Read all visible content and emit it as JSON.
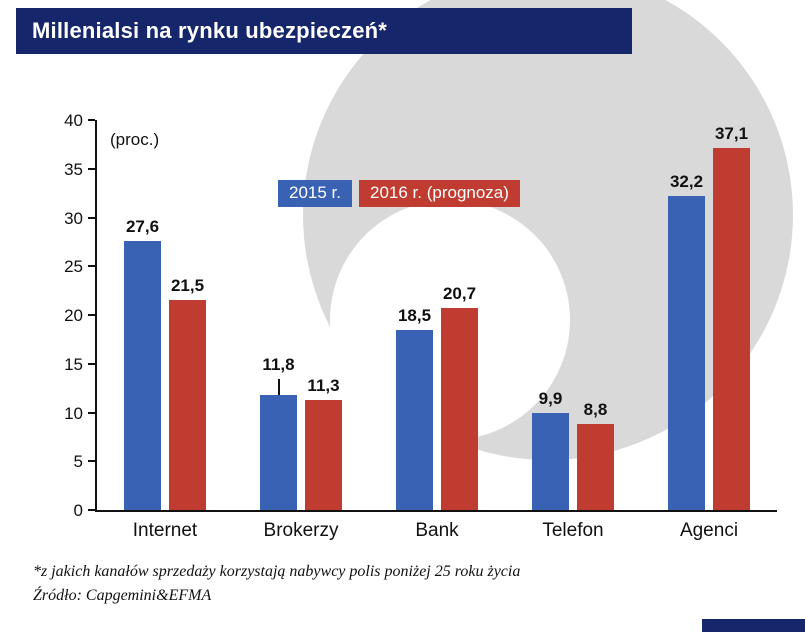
{
  "header": {
    "title": "Millenialsi na rynku ubezpieczeń*"
  },
  "chart_data": {
    "type": "bar",
    "title": "Millenialsi na rynku ubezpieczeń*",
    "unit_label": "(proc.)",
    "categories": [
      "Internet",
      "Brokerzy",
      "Bank",
      "Telefon",
      "Agenci"
    ],
    "series": [
      {
        "name": "2015 r.",
        "color": "#3a62b4",
        "values": [
          27.6,
          11.8,
          18.5,
          9.9,
          32.2
        ],
        "labels": [
          "27,6",
          "11,8",
          "18,5",
          "9,9",
          "32,2"
        ]
      },
      {
        "name": "2016 r. (prognoza)",
        "color": "#c03b30",
        "values": [
          21.5,
          11.3,
          20.7,
          8.8,
          37.1
        ],
        "labels": [
          "21,5",
          "11,3",
          "20,7",
          "8,8",
          "37,1"
        ]
      }
    ],
    "ylim": [
      0,
      40
    ],
    "yticks": [
      0,
      5,
      10,
      15,
      20,
      25,
      30,
      35,
      40
    ],
    "grid": false,
    "legend_position": "upper-center",
    "leader_line": {
      "series": 0,
      "category_index": 1
    }
  },
  "footnote": {
    "line1": "*z jakich kanałów sprzedaży korzystają nabywcy polis poniżej 25 roku życia",
    "line2": "Źródło: Capgemini&EFMA"
  },
  "colors": {
    "header_bg": "#16266b",
    "watermark": "#d9d9d9",
    "axis": "#111111",
    "bar_2015": "#3a62b4",
    "bar_2016": "#c03b30"
  }
}
